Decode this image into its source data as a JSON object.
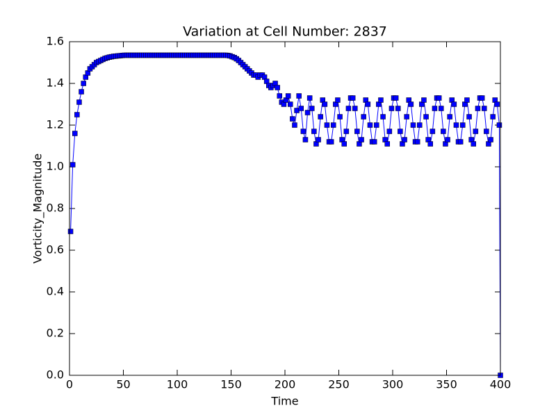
{
  "chart_data": {
    "type": "line",
    "title": "Variation at Cell Number: 2837",
    "xlabel": "Time",
    "ylabel": "Vorticity_Magnitude",
    "x": [
      1,
      3,
      5,
      7,
      9,
      11,
      13,
      15,
      17,
      19,
      21,
      23,
      25,
      27,
      29,
      31,
      33,
      35,
      37,
      39,
      41,
      43,
      45,
      47,
      49,
      51,
      53,
      55,
      57,
      59,
      61,
      63,
      65,
      67,
      69,
      71,
      73,
      75,
      77,
      79,
      81,
      83,
      85,
      87,
      89,
      91,
      93,
      95,
      97,
      99,
      101,
      103,
      105,
      107,
      109,
      111,
      113,
      115,
      117,
      119,
      121,
      123,
      125,
      127,
      129,
      131,
      133,
      135,
      137,
      139,
      141,
      143,
      145,
      147,
      149,
      151,
      153,
      155,
      157,
      159,
      161,
      163,
      165,
      167,
      169,
      171,
      173,
      175,
      177,
      179,
      181,
      183,
      185,
      187,
      189,
      191,
      193,
      195,
      197,
      199,
      201,
      203,
      205,
      207,
      209,
      211,
      213,
      215,
      217,
      219,
      221,
      223,
      225,
      227,
      229,
      231,
      233,
      235,
      237,
      239,
      241,
      243,
      245,
      247,
      249,
      251,
      253,
      255,
      257,
      259,
      261,
      263,
      265,
      267,
      269,
      271,
      273,
      275,
      277,
      279,
      281,
      283,
      285,
      287,
      289,
      291,
      293,
      295,
      297,
      299,
      301,
      303,
      305,
      307,
      309,
      311,
      313,
      315,
      317,
      319,
      321,
      323,
      325,
      327,
      329,
      331,
      333,
      335,
      337,
      339,
      341,
      343,
      345,
      347,
      349,
      351,
      353,
      355,
      357,
      359,
      361,
      363,
      365,
      367,
      369,
      371,
      373,
      375,
      377,
      379,
      381,
      383,
      385,
      387,
      389,
      391,
      393,
      395,
      397,
      399,
      400
    ],
    "series": [
      {
        "name": "Vorticity_Magnitude",
        "color": "#0000ff",
        "values": [
          0.69,
          1.01,
          1.16,
          1.25,
          1.31,
          1.36,
          1.4,
          1.43,
          1.45,
          1.47,
          1.48,
          1.49,
          1.5,
          1.505,
          1.51,
          1.515,
          1.52,
          1.523,
          1.526,
          1.528,
          1.53,
          1.531,
          1.532,
          1.533,
          1.534,
          1.535,
          1.535,
          1.535,
          1.535,
          1.535,
          1.535,
          1.535,
          1.535,
          1.535,
          1.535,
          1.535,
          1.535,
          1.535,
          1.535,
          1.535,
          1.535,
          1.535,
          1.535,
          1.535,
          1.535,
          1.535,
          1.535,
          1.535,
          1.535,
          1.535,
          1.535,
          1.535,
          1.535,
          1.535,
          1.535,
          1.535,
          1.535,
          1.535,
          1.535,
          1.535,
          1.535,
          1.535,
          1.535,
          1.535,
          1.535,
          1.535,
          1.535,
          1.535,
          1.535,
          1.535,
          1.535,
          1.535,
          1.535,
          1.534,
          1.532,
          1.528,
          1.524,
          1.518,
          1.51,
          1.5,
          1.49,
          1.48,
          1.47,
          1.46,
          1.45,
          1.44,
          1.44,
          1.43,
          1.44,
          1.44,
          1.43,
          1.41,
          1.39,
          1.38,
          1.39,
          1.4,
          1.38,
          1.34,
          1.31,
          1.3,
          1.32,
          1.34,
          1.3,
          1.23,
          1.2,
          1.27,
          1.34,
          1.28,
          1.17,
          1.13,
          1.26,
          1.33,
          1.28,
          1.17,
          1.11,
          1.13,
          1.24,
          1.32,
          1.3,
          1.2,
          1.12,
          1.12,
          1.2,
          1.3,
          1.32,
          1.24,
          1.13,
          1.11,
          1.17,
          1.28,
          1.33,
          1.33,
          1.28,
          1.17,
          1.11,
          1.13,
          1.24,
          1.32,
          1.3,
          1.2,
          1.12,
          1.12,
          1.2,
          1.3,
          1.32,
          1.24,
          1.13,
          1.11,
          1.17,
          1.28,
          1.33,
          1.33,
          1.28,
          1.17,
          1.11,
          1.13,
          1.24,
          1.32,
          1.3,
          1.2,
          1.12,
          1.12,
          1.2,
          1.3,
          1.32,
          1.24,
          1.13,
          1.11,
          1.17,
          1.28,
          1.33,
          1.33,
          1.28,
          1.17,
          1.11,
          1.13,
          1.24,
          1.32,
          1.3,
          1.2,
          1.12,
          1.12,
          1.2,
          1.3,
          1.32,
          1.24,
          1.13,
          1.11,
          1.17,
          1.28,
          1.33,
          1.33,
          1.28,
          1.17,
          1.11,
          1.13,
          1.24,
          1.32,
          1.3,
          1.2,
          0
        ]
      }
    ],
    "xlim": [
      0,
      400
    ],
    "xticks": [
      0,
      50,
      100,
      150,
      200,
      250,
      300,
      350,
      400
    ],
    "ylim": [
      0,
      1.6
    ],
    "yticks": [
      {
        "value": 0,
        "label": "0.0"
      },
      {
        "value": 0.2,
        "label": "0.2"
      },
      {
        "value": 0.4,
        "label": "0.4"
      },
      {
        "value": 0.6,
        "label": "0.6"
      },
      {
        "value": 0.8,
        "label": "0.8"
      },
      {
        "value": 1,
        "label": "1.0"
      },
      {
        "value": 1.2,
        "label": "1.2"
      },
      {
        "value": 1.4,
        "label": "1.4"
      },
      {
        "value": 1.6,
        "label": "1.6"
      }
    ],
    "grid": false
  }
}
